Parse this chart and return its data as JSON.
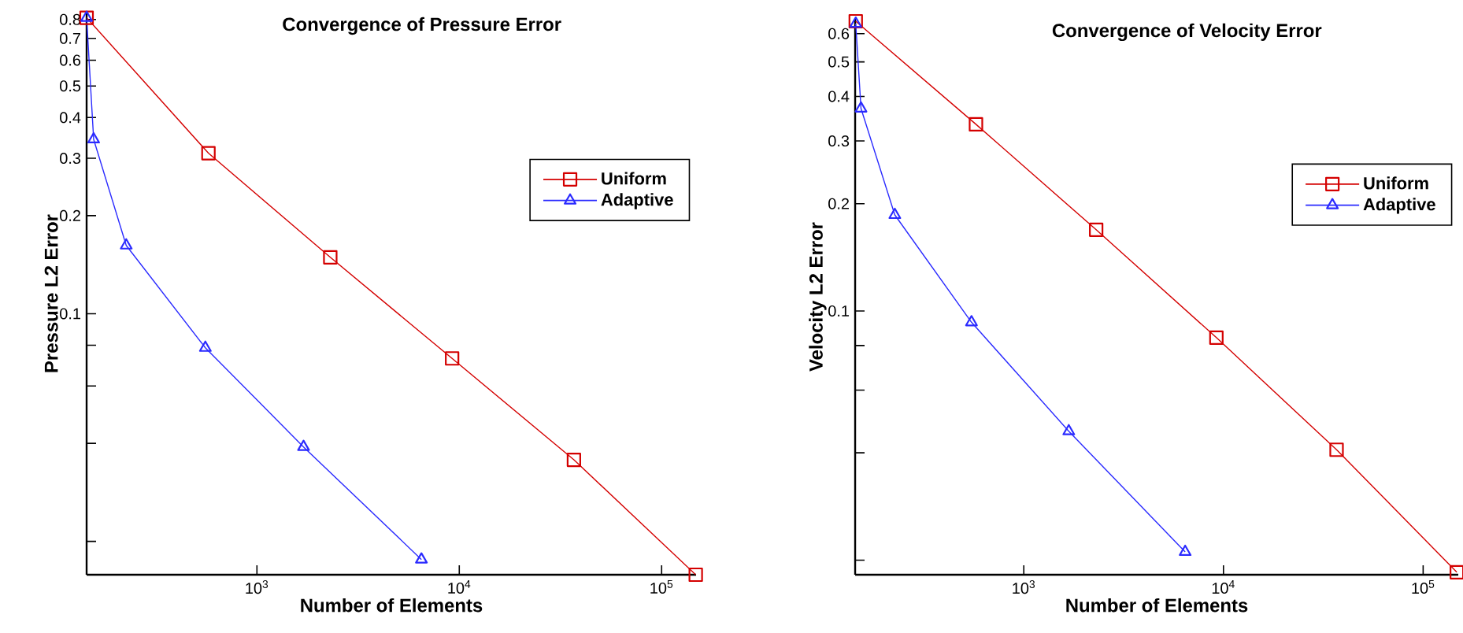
{
  "chart_data": [
    {
      "type": "line",
      "title": "Convergence of Pressure Error",
      "xlabel": "Number of Elements",
      "ylabel": "Pressure L2 Error",
      "log": "xy",
      "legend": "top right",
      "xlim": [
        144,
        148000
      ],
      "ylim": [
        0.0158,
        0.84
      ],
      "xticks": [
        {
          "value": 1000,
          "label": "10$^{3}$"
        },
        {
          "value": 10000,
          "label": "10$^{4}$"
        },
        {
          "value": 100000,
          "label": "10$^{5}$"
        }
      ],
      "yticks": [
        {
          "value": 0.02,
          "label": null
        },
        {
          "value": 0.04,
          "label": null
        },
        {
          "value": 0.06,
          "label": null
        },
        {
          "value": 0.08,
          "label": null
        },
        0.1,
        0.2,
        0.3,
        0.4,
        0.5,
        0.6,
        0.7,
        0.8
      ],
      "series": [
        {
          "name": "Uniform",
          "color": "#d40000",
          "marker": "square",
          "x": [
            144,
            576,
            2304,
            9216,
            36864,
            147456
          ],
          "values": [
            0.81,
            0.311,
            0.149,
            0.0729,
            0.0356,
            0.0158
          ]
        },
        {
          "name": "Adaptive",
          "color": "#2a2aff",
          "marker": "triangle",
          "x": [
            144,
            156,
            226,
            556,
            1700,
            6500
          ],
          "values": [
            0.81,
            0.343,
            0.162,
            0.0786,
            0.039,
            0.0176
          ]
        }
      ]
    },
    {
      "type": "line",
      "title": "Convergence of Velocity Error",
      "xlabel": "Number of Elements",
      "ylabel": "Velocity L2 Error",
      "log": "xy",
      "legend": "top right",
      "xlim": [
        143,
        150000
      ],
      "ylim": [
        0.0182,
        0.66
      ],
      "xticks": [
        {
          "value": 1000,
          "label": "10$^{3}$"
        },
        {
          "value": 10000,
          "label": "10$^{4}$"
        },
        {
          "value": 100000,
          "label": "10$^{5}$"
        }
      ],
      "yticks": [
        {
          "value": 0.02,
          "label": null
        },
        {
          "value": 0.04,
          "label": null
        },
        {
          "value": 0.06,
          "label": null
        },
        {
          "value": 0.08,
          "label": null
        },
        0.1,
        0.2,
        0.3,
        0.4,
        0.5,
        0.6
      ],
      "series": [
        {
          "name": "Uniform",
          "color": "#d40000",
          "marker": "square",
          "x": [
            144,
            576,
            2304,
            9216,
            36864,
            147456
          ],
          "values": [
            0.65,
            0.334,
            0.169,
            0.0842,
            0.0408,
            0.0185
          ]
        },
        {
          "name": "Adaptive",
          "color": "#2a2aff",
          "marker": "triangle",
          "x": [
            144,
            153,
            226,
            547,
            1680,
            6430
          ],
          "values": [
            0.64,
            0.37,
            0.186,
            0.093,
            0.046,
            0.0211
          ]
        }
      ]
    }
  ]
}
